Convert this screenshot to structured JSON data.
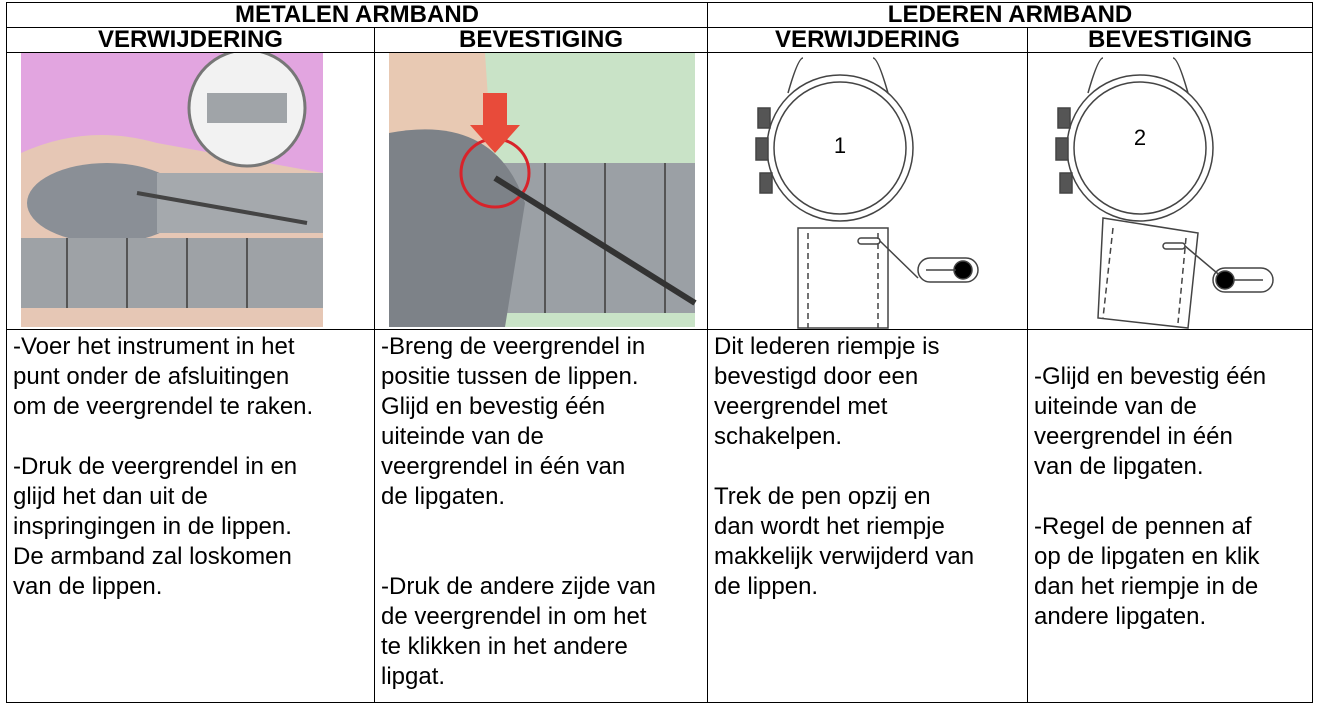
{
  "table": {
    "group_headers": [
      "METALEN ARMBAND",
      "LEDEREN ARMBAND"
    ],
    "sub_headers": [
      "VERWIJDERING",
      "BEVESTIGING",
      "VERWIJDERING",
      "BEVESTIGING"
    ],
    "images": [
      {},
      {},
      {
        "label": "1"
      },
      {
        "label": "2"
      }
    ],
    "cells": [
      {
        "paragraphs": [
          [
            "-Voer het instrument in het",
            "punt onder de afsluitingen",
            "om de veergrendel te raken."
          ],
          [
            "-Druk de veergrendel in en",
            "glijd het dan uit de",
            "inspringingen in de lippen.",
            "De armband zal loskomen",
            "van de lippen."
          ]
        ]
      },
      {
        "paragraphs": [
          [
            "-Breng de veergrendel in",
            "positie tussen de lippen.",
            "Glijd en bevestig één",
            "uiteinde van de",
            "veergrendel in één van",
            "de lipgaten."
          ],
          [
            "-Druk de andere zijde van",
            "de veergrendel in om het",
            "te klikken in het andere",
            "lipgat."
          ]
        ]
      },
      {
        "paragraphs": [
          [
            "Dit lederen riempje is",
            "bevestigd door een",
            "veergrendel met",
            "schakelpen."
          ],
          [
            "Trek de pen opzij en",
            "dan wordt het riempje",
            "makkelijk verwijderd van",
            "de lippen."
          ]
        ]
      },
      {
        "paragraphs": [
          [
            "-Glijd en bevestig één",
            "uiteinde van de",
            "veergrendel in één",
            "van de lipgaten."
          ],
          [
            "-Regel de pennen af",
            "op de lipgaten en klik",
            "dan het riempje in de",
            "andere lipgaten."
          ]
        ]
      }
    ]
  }
}
